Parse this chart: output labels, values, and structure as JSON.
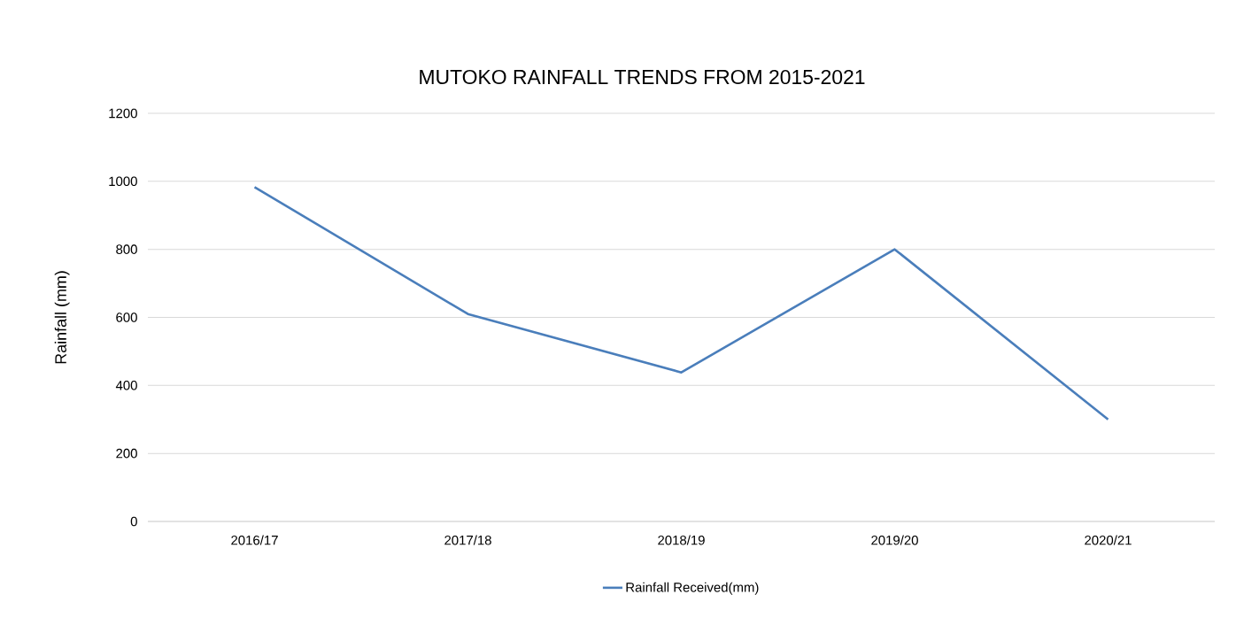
{
  "chart_data": {
    "type": "line",
    "title": "MUTOKO RAINFALL TRENDS FROM 2015-2021",
    "ylabel": "Rainfall (mm)",
    "categories": [
      "2016/17",
      "2017/18",
      "2018/19",
      "2019/20",
      "2020/21"
    ],
    "series": [
      {
        "name": "Rainfall Received(mm)",
        "color": "#4a7ebb",
        "values": [
          983,
          610,
          438,
          800,
          300
        ]
      }
    ],
    "ylim": [
      0,
      1200
    ],
    "yticks": [
      0,
      200,
      400,
      600,
      800,
      1000,
      1200
    ],
    "grid": "y",
    "legend": "bottom",
    "marker": "none",
    "line_style": "solid"
  }
}
